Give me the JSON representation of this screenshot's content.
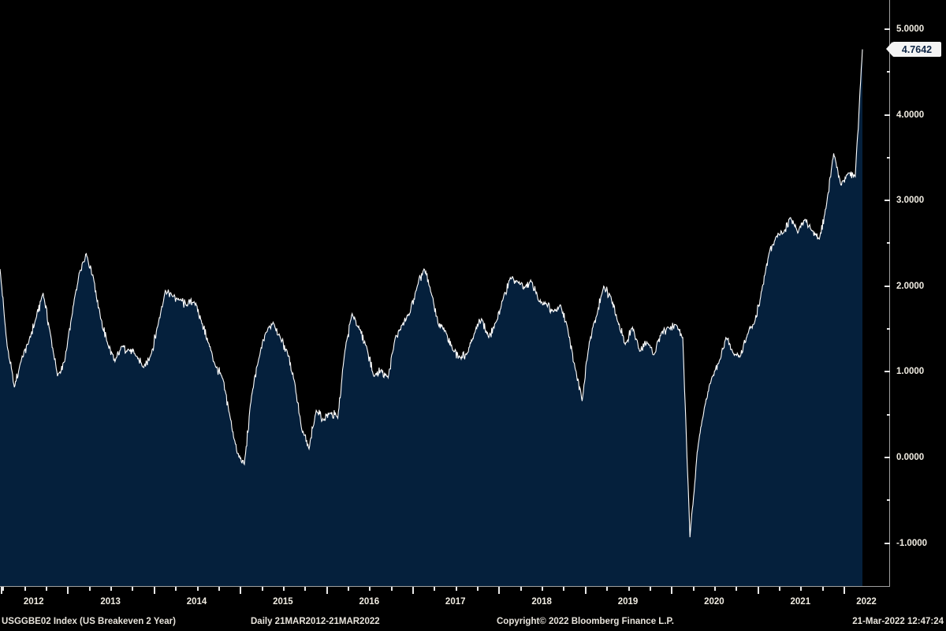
{
  "colors": {
    "background": "#000000",
    "line": "#ffffff",
    "area_fill": "#05203c",
    "axis_line": "#a0a0a0",
    "tick": "#e8e8e8",
    "label_text": "#f0ece2",
    "footer_text": "#e8e4dc",
    "badge_bg": "#f4f4f4",
    "badge_text": "#0e2545"
  },
  "badge": {
    "label": "4.7642"
  },
  "footer": {
    "security": "USGGBE02 Index (US Breakeven 2 Year)",
    "range": "Daily 21MAR2012-21MAR2022",
    "copyright": "Copyright© 2022 Bloomberg Finance L.P.",
    "timestamp": "21-Mar-2022 12:47:24"
  },
  "chart_data": {
    "type": "area",
    "title": "USGGBE02 Index (US Breakeven 2 Year)",
    "period": "Daily",
    "date_range": "21MAR2012-21MAR2022",
    "grid": false,
    "legend": false,
    "last_value": 4.7642,
    "last_value_label": "4.7642",
    "x_start_decimal_year": 2012.2192,
    "x_end_decimal_year": 2022.2192,
    "x_year_boundaries": [
      2013,
      2014,
      2015,
      2016,
      2017,
      2018,
      2019,
      2020,
      2021,
      2022
    ],
    "x_year_labels": [
      "2012",
      "2013",
      "2014",
      "2015",
      "2016",
      "2017",
      "2018",
      "2019",
      "2020",
      "2021",
      "2022"
    ],
    "ylim": [
      -1.5,
      5.34
    ],
    "y_major_ticks": [
      5,
      4,
      3,
      2,
      1,
      0,
      -1
    ],
    "y_tick_labels": [
      "5.0000",
      "4.0000",
      "3.0000",
      "2.0000",
      "1.0000",
      "0.0000",
      "-1.0000"
    ],
    "y_minor_ticks": [
      4.5,
      3.5,
      2.5,
      1.5,
      0.5,
      -0.5
    ],
    "series_name": "USGGBE02 Index",
    "series_start_month": "2012-03",
    "series_sampling": "monthly anchors downsampled from daily data",
    "noise_amplitude": 0.05,
    "values": [
      2.2,
      1.3,
      0.82,
      1.15,
      1.35,
      1.62,
      1.92,
      1.45,
      0.95,
      1.12,
      1.65,
      2.15,
      2.38,
      2.1,
      1.62,
      1.32,
      1.12,
      1.3,
      1.25,
      1.18,
      1.05,
      1.2,
      1.55,
      1.95,
      1.88,
      1.84,
      1.78,
      1.82,
      1.6,
      1.34,
      1.06,
      0.92,
      0.48,
      0.05,
      -0.08,
      0.72,
      1.15,
      1.46,
      1.58,
      1.4,
      1.22,
      0.88,
      0.32,
      0.1,
      0.55,
      0.44,
      0.52,
      0.46,
      1.25,
      1.68,
      1.5,
      1.3,
      0.95,
      1.02,
      0.93,
      1.4,
      1.55,
      1.68,
      1.98,
      2.2,
      1.92,
      1.55,
      1.48,
      1.25,
      1.17,
      1.22,
      1.45,
      1.62,
      1.4,
      1.58,
      1.85,
      2.1,
      2.05,
      1.98,
      2.05,
      1.82,
      1.8,
      1.7,
      1.78,
      1.5,
      1.05,
      0.66,
      1.35,
      1.65,
      2.0,
      1.88,
      1.58,
      1.32,
      1.52,
      1.24,
      1.35,
      1.2,
      1.45,
      1.52,
      1.55,
      1.4,
      -0.93,
      0.06,
      0.58,
      0.92,
      1.1,
      1.4,
      1.22,
      1.18,
      1.44,
      1.58,
      1.95,
      2.38,
      2.58,
      2.62,
      2.8,
      2.62,
      2.78,
      2.65,
      2.55,
      2.95,
      3.55,
      3.18,
      3.32,
      3.28,
      4.7642
    ]
  }
}
